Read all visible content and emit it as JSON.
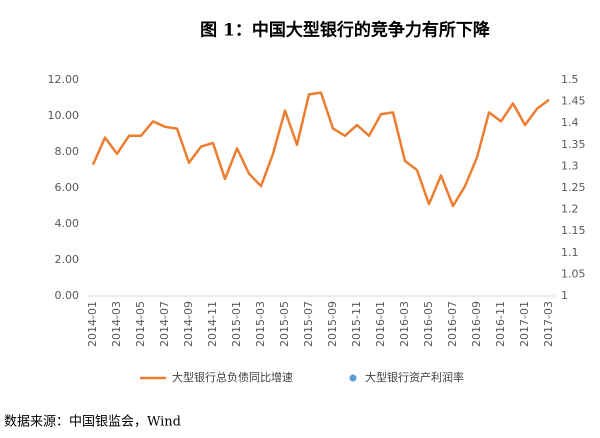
{
  "chart_data": {
    "type": "line",
    "title": "图 1：中国大型银行的竞争力有所下降",
    "source": "数据来源：中国银监会，Wind",
    "categories": [
      "2014-01",
      null,
      "2014-03",
      null,
      "2014-05",
      null,
      "2014-07",
      null,
      "2014-09",
      null,
      "2014-11",
      null,
      "2015-01",
      null,
      "2015-03",
      null,
      "2015-05",
      null,
      "2015-07",
      null,
      "2015-09",
      null,
      "2015-11",
      null,
      "2016-01",
      null,
      "2016-03",
      null,
      "2016-05",
      null,
      "2016-07",
      null,
      "2016-09",
      null,
      "2016-11",
      null,
      "2017-01",
      null,
      "2017-03"
    ],
    "series": [
      {
        "name": "大型银行总负债同比增速",
        "color": "#ed7d31",
        "values": [
          7.3,
          8.8,
          7.9,
          8.9,
          8.9,
          9.7,
          9.4,
          9.3,
          7.4,
          8.3,
          8.5,
          6.5,
          8.2,
          6.8,
          6.1,
          7.9,
          10.3,
          8.4,
          11.2,
          11.3,
          9.3,
          8.9,
          9.5,
          8.9,
          10.1,
          10.2,
          7.5,
          7.0,
          5.1,
          6.7,
          5.0,
          6.1,
          7.7,
          10.2,
          9.7,
          10.7,
          9.5,
          10.4,
          10.9
        ]
      },
      {
        "name": "大型银行资产利润率",
        "color": "#5b9bd5",
        "axis": "y2",
        "values": [
          null,
          null,
          null,
          null,
          null,
          null,
          null,
          null,
          null,
          null,
          null,
          null,
          null,
          null,
          null,
          null,
          null,
          null,
          null,
          null,
          null,
          null,
          null,
          null,
          null,
          null,
          null,
          null,
          null,
          null,
          null,
          null,
          null,
          null,
          null,
          null,
          null,
          null,
          null
        ]
      }
    ],
    "ylim": [
      0,
      12
    ],
    "yticks": [
      {
        "value": 0,
        "label": "0.00"
      },
      {
        "value": 2,
        "label": "2.00"
      },
      {
        "value": 4,
        "label": "4.00"
      },
      {
        "value": 6,
        "label": "6.00"
      },
      {
        "value": 8,
        "label": "8.00"
      },
      {
        "value": 10,
        "label": "10.00"
      },
      {
        "value": 12,
        "label": "12.00"
      }
    ],
    "y2lim": [
      1,
      1.5
    ],
    "y2ticks": [
      1,
      1.05,
      1.1,
      1.15,
      1.2,
      1.25,
      1.3,
      1.35,
      1.4,
      1.45,
      1.5
    ],
    "grid": false
  }
}
